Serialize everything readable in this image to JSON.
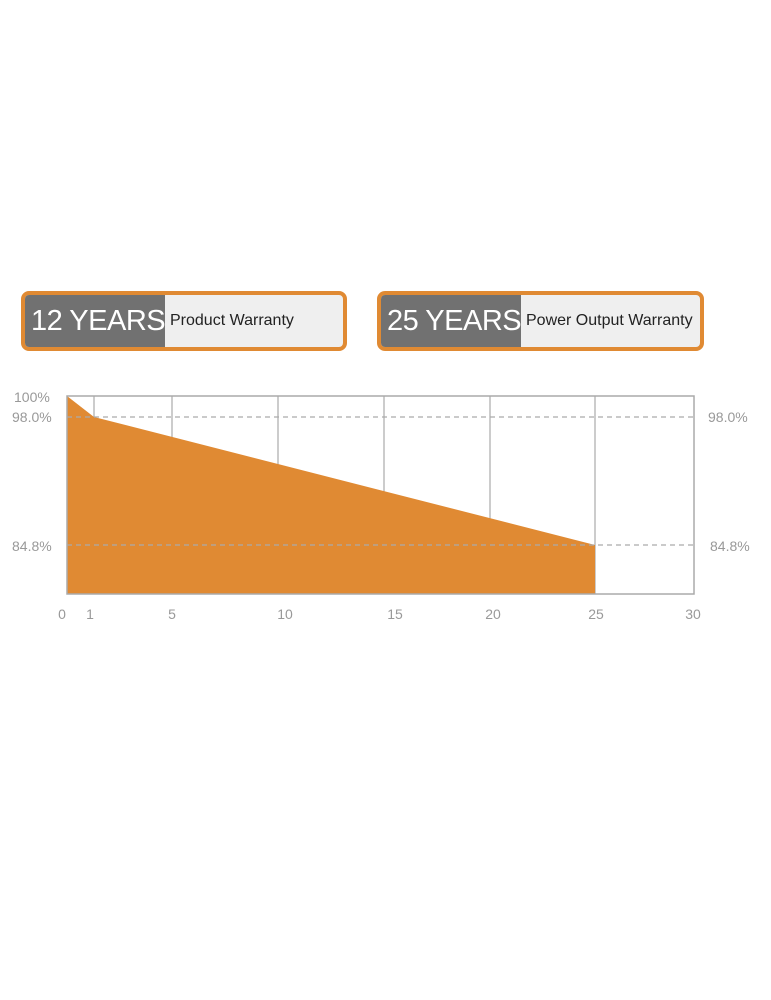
{
  "badges": [
    {
      "years": "12 YEARS",
      "label": "Product Warranty"
    },
    {
      "years": "25 YEARS",
      "label": "Power Output Warranty"
    }
  ],
  "colors": {
    "fill": "#e08a33",
    "badge_dark": "#717171",
    "badge_light": "#efefef",
    "grid": "#aaaaaa"
  },
  "chart_data": {
    "type": "area",
    "x": [
      0,
      1,
      25
    ],
    "values": [
      100,
      98.0,
      84.8
    ],
    "xlim": [
      0,
      30
    ],
    "x_ticks": [
      "0",
      "1",
      "5",
      "10",
      "15",
      "20",
      "25",
      "30"
    ],
    "y_ticks_left": [
      "100%",
      "98.0%",
      "84.8%"
    ],
    "y_ticks_right": [
      "98.0%",
      "84.8%"
    ],
    "grid": true
  }
}
